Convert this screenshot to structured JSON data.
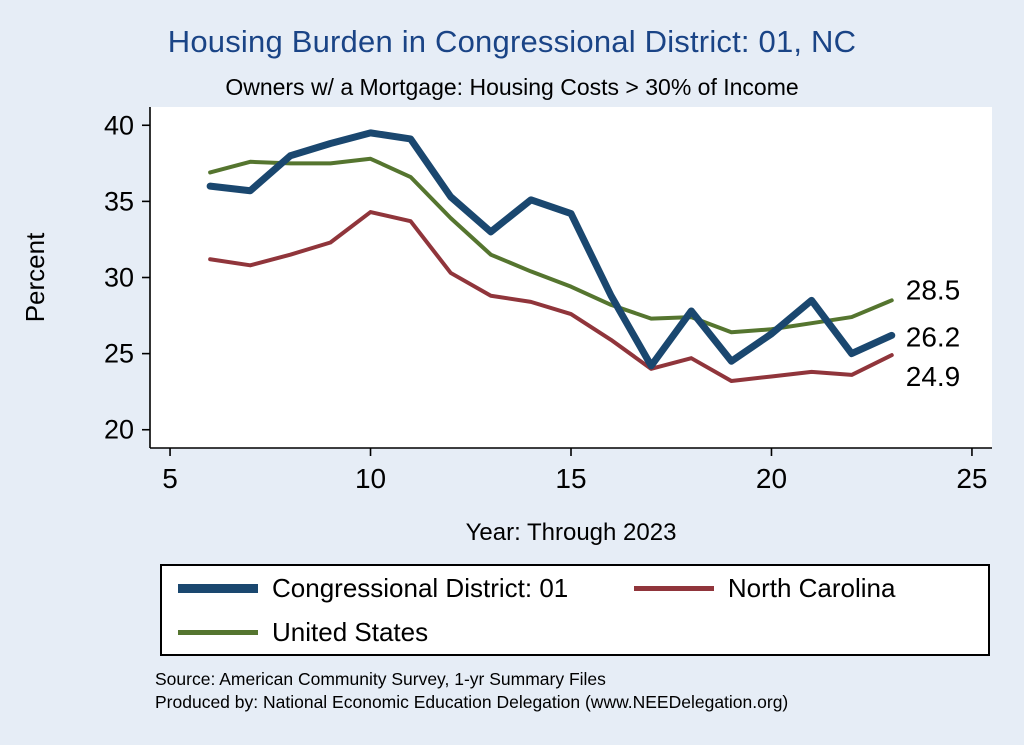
{
  "page": {
    "title": "Housing Burden in Congressional District:  01, NC",
    "subtitle": "Owners w/ a Mortgage: Housing Costs > 30% of Income"
  },
  "chart_data": {
    "type": "line",
    "title": "Housing Burden in Congressional District:  01, NC",
    "subtitle": "Owners w/ a Mortgage: Housing Costs > 30% of Income",
    "xlabel": "Year: Through 2023",
    "ylabel": "Percent",
    "x": [
      6,
      7,
      8,
      9,
      10,
      11,
      12,
      13,
      14,
      15,
      16,
      17,
      18,
      19,
      20,
      21,
      22,
      23
    ],
    "series": [
      {
        "name": "Congressional District:  01",
        "color": "#1a476f",
        "thickness": 7,
        "end_label": "26.2",
        "end_label_dy": 2,
        "values": [
          36.0,
          35.7,
          38.0,
          38.8,
          39.5,
          39.1,
          35.3,
          33.0,
          35.1,
          34.2,
          28.8,
          24.2,
          27.8,
          24.5,
          26.3,
          28.5,
          25.0,
          26.2
        ]
      },
      {
        "name": "North Carolina",
        "color": "#90353b",
        "thickness": 4,
        "end_label": "24.9",
        "end_label_dy": 22,
        "values": [
          31.2,
          30.8,
          31.5,
          32.3,
          34.3,
          33.7,
          30.3,
          28.8,
          28.4,
          27.6,
          25.9,
          24.0,
          24.7,
          23.2,
          23.5,
          23.8,
          23.6,
          24.9
        ]
      },
      {
        "name": "United States",
        "color": "#55752f",
        "thickness": 4,
        "end_label": "28.5",
        "end_label_dy": -10,
        "values": [
          36.9,
          37.6,
          37.5,
          37.5,
          37.8,
          36.6,
          33.9,
          31.5,
          30.4,
          29.4,
          28.2,
          27.3,
          27.4,
          26.4,
          26.6,
          27.0,
          27.4,
          28.5
        ]
      }
    ],
    "xticks": [
      5,
      10,
      15,
      20,
      25
    ],
    "yticks": [
      20,
      25,
      30,
      35,
      40
    ],
    "xlim": [
      4.5,
      25.5
    ],
    "ylim": [
      18.8,
      41.2
    ],
    "grid": false,
    "legend_position": "bottom",
    "plot_background": "#ffffff",
    "page_background": "#e6edf6"
  },
  "footer": {
    "source_line1": "Source: American Community Survey, 1-yr Summary Files",
    "source_line2": "Produced by: National Economic Education Delegation (www.NEEDelegation.org)"
  }
}
